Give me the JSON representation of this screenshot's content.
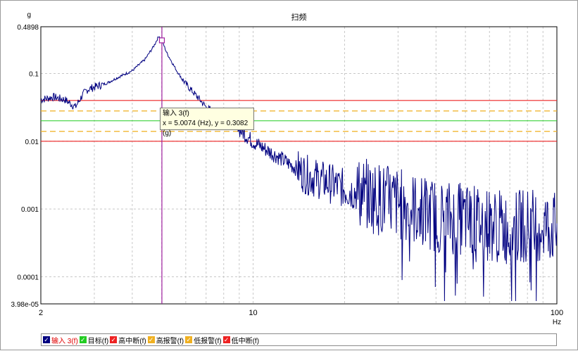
{
  "chart_data": {
    "type": "line",
    "title": "扫频",
    "ylabel": "g",
    "xlabel": "Hz",
    "xscale": "log",
    "yscale": "log",
    "xlim": [
      2,
      100
    ],
    "ylim": [
      3.98e-05,
      0.4898
    ],
    "x_ticks": [
      "2",
      "10",
      "100"
    ],
    "y_ticks": [
      "0.4898",
      "0.1",
      "0.01",
      "0.001",
      "0.0001",
      "3.98e-05"
    ],
    "grid": true,
    "legend_position": "bottom",
    "series": [
      {
        "name": "输入 3(f)",
        "color": "#000080",
        "x": [
          2,
          2.2,
          2.4,
          2.6,
          2.75,
          2.85,
          3.0,
          3.3,
          3.6,
          4.0,
          4.4,
          4.7,
          4.9,
          5.0074,
          5.2,
          5.6,
          6.0,
          6.5,
          7.0,
          8.0,
          9.0,
          10,
          12,
          15,
          20,
          25,
          30,
          40,
          50,
          60,
          70,
          80,
          90,
          100
        ],
        "y": [
          0.0411,
          0.045,
          0.041,
          0.032,
          0.049,
          0.058,
          0.063,
          0.072,
          0.088,
          0.11,
          0.16,
          0.25,
          0.36,
          0.3082,
          0.2,
          0.11,
          0.07,
          0.047,
          0.032,
          0.022,
          0.015,
          0.0098,
          0.006,
          0.0032,
          0.002,
          0.0015,
          0.0012,
          0.0008,
          0.0007,
          0.0006,
          0.0005,
          0.0006,
          0.0006,
          0.0005
        ]
      },
      {
        "name": "目标(f)",
        "color": "#22cc22",
        "value": 0.02
      },
      {
        "name": "高中断(f)",
        "color": "#ee2222",
        "values": [
          0.04,
          0.01
        ]
      },
      {
        "name": "高报警(f)",
        "color": "#f0b020",
        "value": 0.028
      },
      {
        "name": "低报警(f)",
        "color": "#f0b020",
        "value": 0.014
      },
      {
        "name": "低中断(f)",
        "color": "#ee2222"
      }
    ],
    "cursor": {
      "x": 5.0074,
      "y": 0.3082
    }
  },
  "tooltip": {
    "line1": "输入 3(f)",
    "line2": "x = 5.0074 (Hz), y = 0.3082 (g)"
  },
  "legend": [
    {
      "label": "输入 3(f)",
      "color": "#000080",
      "checked": true,
      "active": true
    },
    {
      "label": "目标(f)",
      "color": "#22cc22",
      "checked": true,
      "active": false
    },
    {
      "label": "高中断(f)",
      "color": "#ee2222",
      "checked": true,
      "active": false
    },
    {
      "label": "高报警(f)",
      "color": "#f0b020",
      "checked": true,
      "active": false
    },
    {
      "label": "低报警(f)",
      "color": "#f0b020",
      "checked": true,
      "active": false
    },
    {
      "label": "低中断(f)",
      "color": "#ee2222",
      "checked": true,
      "active": false
    }
  ]
}
